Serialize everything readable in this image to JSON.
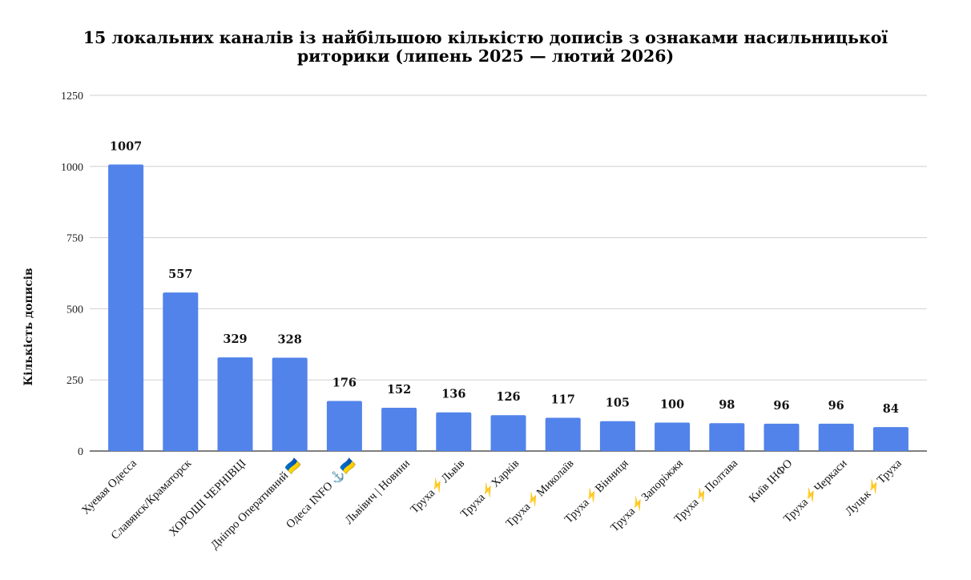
{
  "chart_data": {
    "type": "bar",
    "title_lines": [
      "15 локальних каналів із найбільшою кількістю дописів з ознаками насильницької",
      "риторики (липень 2025 — лютий 2026)"
    ],
    "ylabel": "Кількість дописів",
    "xlabel": "",
    "ylim": [
      0,
      1250
    ],
    "yticks": [
      0,
      250,
      500,
      750,
      1000,
      1250
    ],
    "grid": true,
    "categories": [
      "Хуевая Одесса",
      "Славянск/Краматорск",
      "ХОРОШІ ЧЕРНІВЦІ",
      "Дніпро Оперативний 🇺🇦",
      "Одеса INFO ⚓🇺🇦",
      "Львівич | Новини",
      "Труха⚡Львів",
      "Труха⚡Харків",
      "Труха⚡Миколаїв",
      "Труха⚡Вінниця",
      "Труха⚡Запоріжжя",
      "Труха⚡Полтава",
      "Київ ІНФО",
      "Труха⚡Черкаси",
      "Луцьк⚡Труха"
    ],
    "values": [
      1007,
      557,
      329,
      328,
      176,
      152,
      136,
      126,
      117,
      105,
      100,
      98,
      96,
      96,
      84
    ],
    "data_labels": [
      "1007",
      "557",
      "329",
      "328",
      "176",
      "152",
      "136",
      "126",
      "117",
      "105",
      "100",
      "98",
      "96",
      "96",
      "84"
    ]
  },
  "colors": {
    "bar": "#5283ea",
    "grid": "#d0d0d0",
    "axis": "#333333"
  }
}
